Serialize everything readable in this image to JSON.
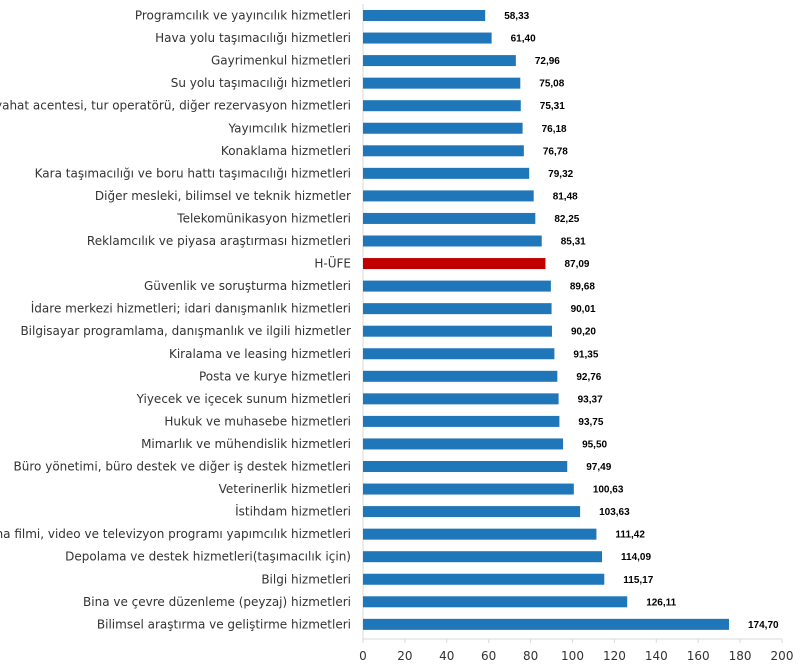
{
  "chart_data": {
    "type": "bar",
    "orientation": "horizontal",
    "categories": [
      "Programcılık ve yayıncılık hizmetleri",
      "Hava yolu taşımacılığı hizmetleri",
      "Gayrimenkul hizmetleri",
      "Su yolu taşımacılığı hizmetleri",
      "Seyahat acentesi, tur operatörü, diğer rezervasyon hizmetleri",
      "Yayımcılık hizmetleri",
      "Konaklama hizmetleri",
      "Kara taşımacılığı ve boru hattı taşımacılığı hizmetleri",
      "Diğer mesleki, bilimsel ve teknik hizmetler",
      "Telekomünikasyon hizmetleri",
      "Reklamcılık ve piyasa araştırması hizmetleri",
      "H-ÜFE",
      "Güvenlik ve soruşturma hizmetleri",
      "İdare merkezi hizmetleri; idari danışmanlık hizmetleri",
      "Bilgisayar programlama, danışmanlık ve ilgili hizmetler",
      "Kiralama ve leasing hizmetleri",
      "Posta ve kurye hizmetleri",
      "Yiyecek ve içecek sunum hizmetleri",
      "Hukuk ve muhasebe hizmetleri",
      "Mimarlık ve mühendislik hizmetleri",
      "Büro yönetimi, büro destek ve diğer iş destek hizmetleri",
      "Veterinerlik hizmetleri",
      "İstihdam hizmetleri",
      "Sinema filmi, video ve televizyon programı yapımcılık hizmetleri",
      "Depolama ve destek hizmetleri(taşımacılık için)",
      "Bilgi hizmetleri",
      "Bina ve çevre düzenleme (peyzaj) hizmetleri",
      "Bilimsel araştırma ve geliştirme hizmetleri"
    ],
    "values": [
      58.33,
      61.4,
      72.96,
      75.08,
      75.31,
      76.18,
      76.78,
      79.32,
      81.48,
      82.25,
      85.31,
      87.09,
      89.68,
      90.01,
      90.2,
      91.35,
      92.76,
      93.37,
      93.75,
      95.5,
      97.49,
      100.63,
      103.63,
      111.42,
      114.09,
      115.17,
      126.11,
      174.7
    ],
    "value_labels": [
      "58,33",
      "61,40",
      "72,96",
      "75,08",
      "75,31",
      "76,18",
      "76,78",
      "79,32",
      "81,48",
      "82,25",
      "85,31",
      "87,09",
      "89,68",
      "90,01",
      "90,20",
      "91,35",
      "92,76",
      "93,37",
      "93,75",
      "95,50",
      "97,49",
      "100,63",
      "103,63",
      "111,42",
      "114,09",
      "115,17",
      "126,11",
      "174,70"
    ],
    "highlight_category": "H-ÜFE",
    "xlim": [
      0,
      200
    ],
    "xticks": [
      0,
      20,
      40,
      60,
      80,
      100,
      120,
      140,
      160,
      180,
      200
    ],
    "title": "",
    "xlabel": "",
    "ylabel": "",
    "grid": false,
    "colors": {
      "bar": "#1f77b9",
      "highlight": "#c00000",
      "axis": "#d9d9d9",
      "label": "#333333",
      "value_label": "#000000"
    }
  }
}
